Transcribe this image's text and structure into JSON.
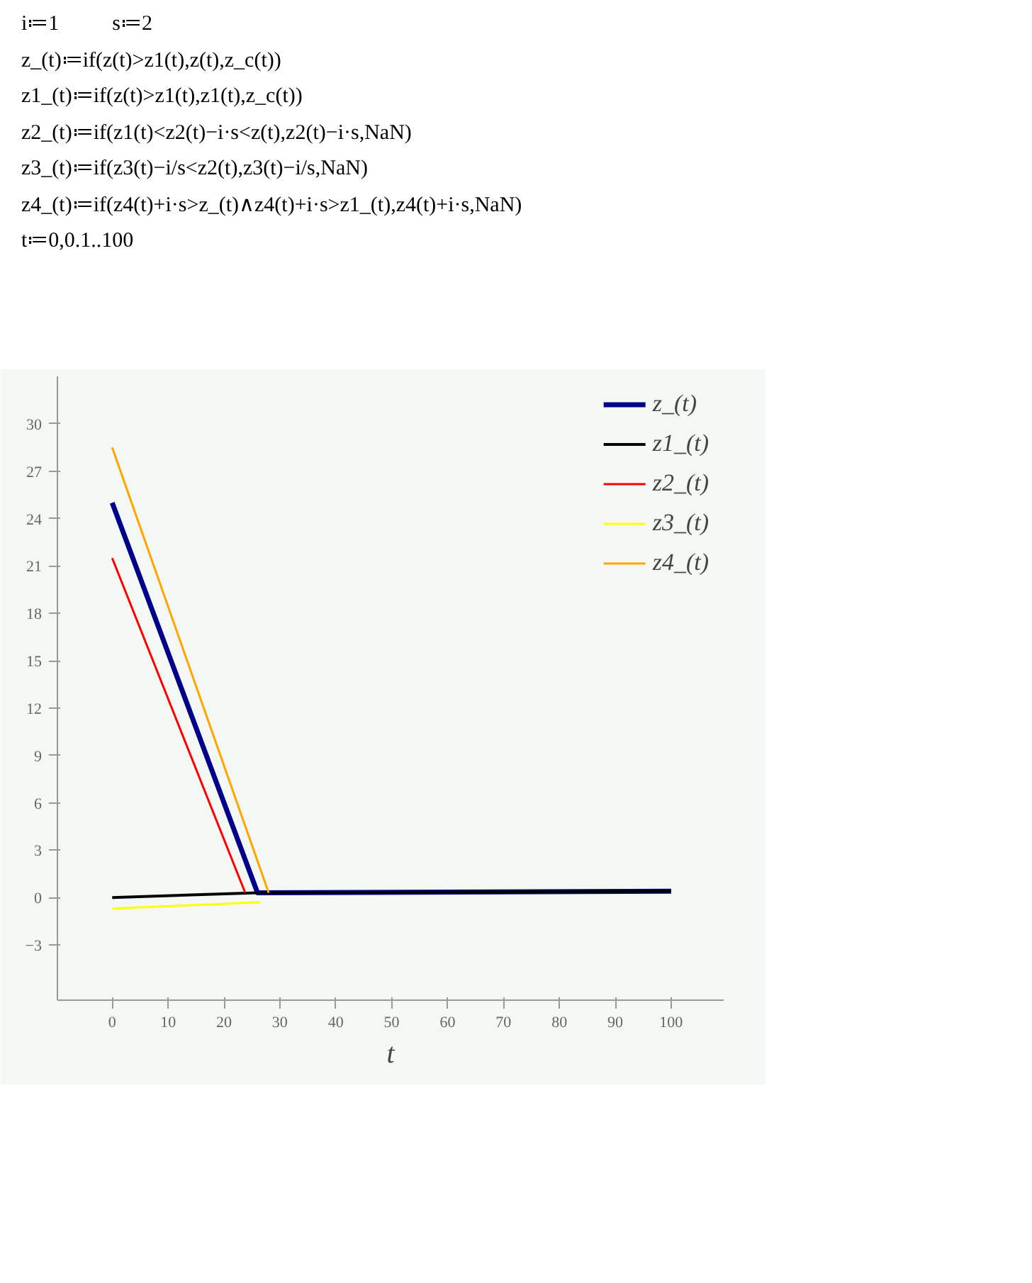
{
  "chart_data": {
    "type": "line",
    "annotations": [
      "i≔1          s≔2",
      "z_(t)≔if(z(t)>z1(t),z(t),z_c(t))",
      "z1_(t)≔if(z(t)>z1(t),z1(t),z_c(t))",
      "z2_(t)≔if(z1(t)<z2(t)−i·s<z(t),z2(t)−i·s,NaN)",
      "z3_(t)≔if(z3(t)−i/s<z2(t),z3(t)−i/s,NaN)",
      "z4_(t)≔if(z4(t)+i·s>z_(t)∧z4(t)+i·s>z1_(t),z4(t)+i·s,NaN)",
      "t≔0,0.1..100"
    ],
    "xlabel": "t",
    "series": [
      {
        "name": "z_(t)",
        "color": "#00008b",
        "x": [
          0,
          26,
          100
        ],
        "values": [
          25,
          0.3,
          0.4
        ]
      },
      {
        "name": "z1_(t)",
        "color": "#000000",
        "x": [
          0,
          26,
          100
        ],
        "values": [
          0,
          0.3,
          0.4
        ]
      },
      {
        "name": "z2_(t)",
        "color": "#ff0000",
        "x": [
          0,
          23.8
        ],
        "values": [
          21.5,
          0.3
        ]
      },
      {
        "name": "z3_(t)",
        "color": "#ffff00",
        "x": [
          0,
          26.5
        ],
        "values": [
          -0.7,
          -0.3
        ]
      },
      {
        "name": "z4_(t)",
        "color": "#ffa500",
        "x": [
          0,
          28
        ],
        "values": [
          28.5,
          0.3
        ]
      }
    ],
    "xlim": [
      -9.8,
      109.4
    ],
    "ylim": [
      -6.5,
      33
    ],
    "xticks": [
      0,
      10,
      20,
      30,
      40,
      50,
      60,
      70,
      80,
      90,
      100
    ],
    "yticks": [
      -3,
      0,
      3,
      6,
      9,
      12,
      15,
      18,
      21,
      24,
      27,
      30
    ],
    "grid": false,
    "legend": "top right",
    "line_style": "solid",
    "marker": "none"
  }
}
